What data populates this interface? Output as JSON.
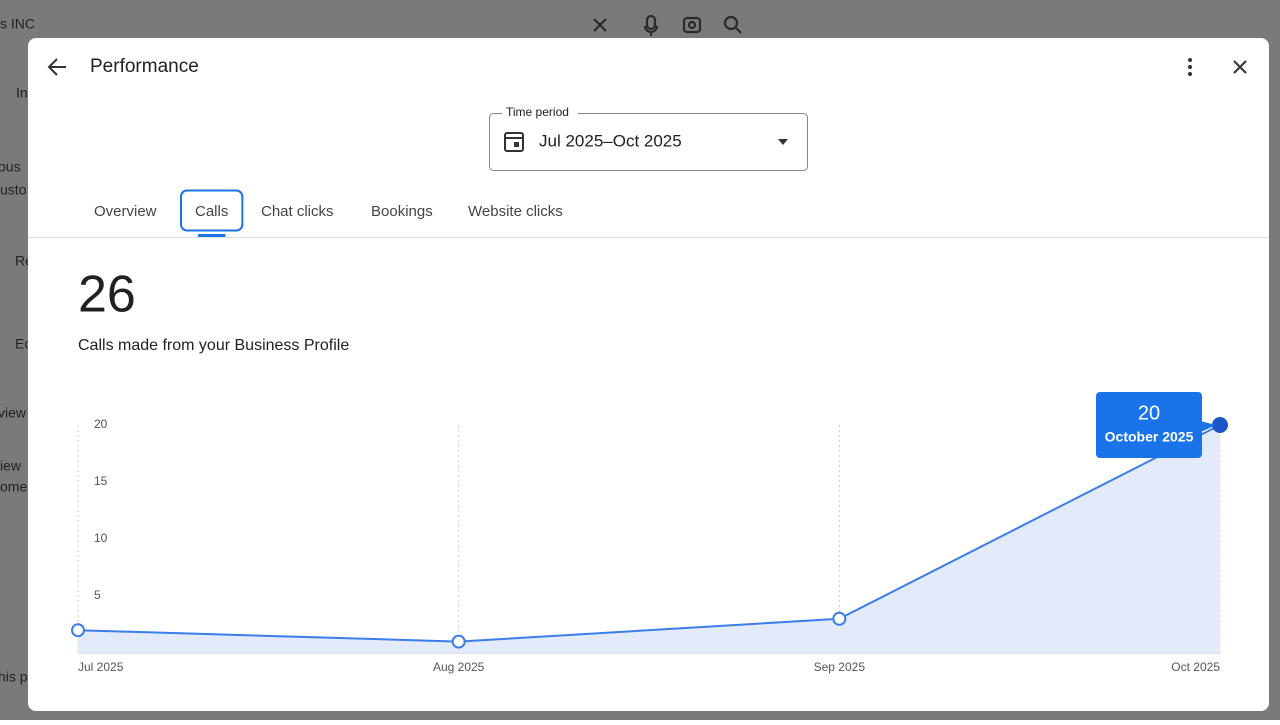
{
  "background": {
    "search_text": "s INC",
    "fragments": [
      "In",
      "ous",
      "usto",
      "Re",
      "Ec",
      "view",
      "iew",
      "ome",
      "his pr"
    ]
  },
  "header": {
    "title": "Performance"
  },
  "time_period": {
    "label": "Time period",
    "value": "Jul 2025–Oct 2025"
  },
  "tabs": [
    "Overview",
    "Calls",
    "Chat clicks",
    "Bookings",
    "Website clicks"
  ],
  "selected_tab": 1,
  "summary": {
    "total": 26,
    "description": "Calls made from your Business Profile"
  },
  "chart_data": {
    "type": "area",
    "categories": [
      "Jul 2025",
      "Aug 2025",
      "Sep 2025",
      "Oct 2025"
    ],
    "values": [
      2,
      1,
      3,
      20
    ],
    "color": "#3b7de9",
    "ylim": [
      0,
      20
    ],
    "yticks": [
      5,
      10,
      15,
      20
    ],
    "grid": true,
    "tooltip": {
      "index": 3,
      "label": "October 2025"
    }
  }
}
